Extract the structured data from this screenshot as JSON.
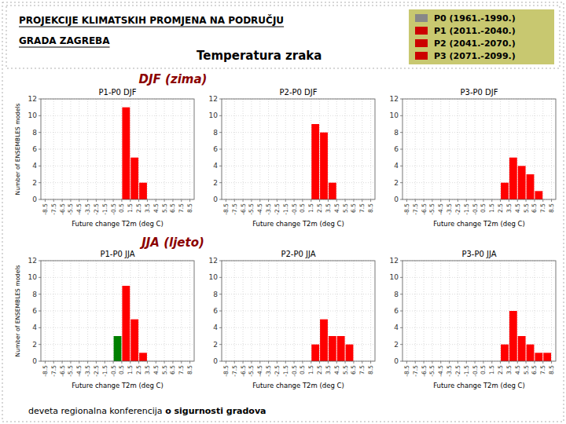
{
  "title": [
    "PROJEKCIJE KLIMATSKIH PROMJENA NA PODRUČJU",
    "GRADA ZAGREBA"
  ],
  "subtitle": "Temperatura zraka",
  "section_labels": [
    "DJF (zima)",
    "JJA (ljeto)"
  ],
  "section_label_color": "#8b0000",
  "legend_entries": [
    {
      "name": "P0 (1961.-1990.)",
      "color": "#888888"
    },
    {
      "name": "P1 (2011.-2040.)",
      "color": "#cc0000"
    },
    {
      "name": "P2 (2041.-2070.)",
      "color": "#cc0000"
    },
    {
      "name": "P3 (2071.-2099.)",
      "color": "#cc0000"
    }
  ],
  "legend_background": "#c8c870",
  "footer": [
    "d",
    "eveta regionalna konferencija ",
    "o sigurnosti gradova"
  ],
  "background_color": "#ffffff",
  "chart_data": [
    {
      "type": "histogram",
      "title": "P1-P0 DJF",
      "xlabel": "Future change T2m (deg C)",
      "ylabel": "Number of ENSEMBLES models",
      "bins": [
        -8.5,
        -7.5,
        -6.5,
        -5.5,
        -4.5,
        -3.5,
        -2.5,
        -1.5,
        -0.5,
        0.5,
        1.5,
        2.5,
        3.5,
        4.5,
        5.5,
        6.5,
        7.5,
        8.5
      ],
      "values": [
        0,
        0,
        0,
        0,
        0,
        0,
        0,
        0,
        0,
        11,
        5,
        2,
        0,
        0,
        0,
        0,
        0
      ],
      "colors": [
        "red",
        "red",
        "red",
        "red",
        "red",
        "red",
        "red",
        "red",
        "red",
        "red",
        "red",
        "red",
        "red",
        "red",
        "red",
        "red",
        "red"
      ],
      "xlim": [
        -9,
        9
      ],
      "xticks": [
        -8.5,
        -7.5,
        -6.5,
        -5.5,
        -4.5,
        -3.5,
        -2.5,
        -1.5,
        -0.5,
        0.5,
        1.5,
        2.5,
        3.5,
        4.5,
        5.5,
        6.5,
        7.5,
        8.5
      ],
      "ylim": [
        0,
        12
      ],
      "yticks": [
        0,
        2,
        4,
        6,
        8,
        10,
        12
      ],
      "grid": true
    },
    {
      "type": "histogram",
      "title": "P2-P0 DJF",
      "xlabel": "Future change T2m (deg C)",
      "bins": [
        -8.5,
        -7.5,
        -6.5,
        -5.5,
        -4.5,
        -3.5,
        -2.5,
        -1.5,
        -0.5,
        0.5,
        1.5,
        2.5,
        3.5,
        4.5,
        5.5,
        6.5,
        7.5,
        8.5
      ],
      "values": [
        0,
        0,
        0,
        0,
        0,
        0,
        0,
        0,
        0,
        0,
        9,
        8,
        2,
        0,
        0,
        0,
        0
      ],
      "colors": [
        "red",
        "red",
        "red",
        "red",
        "red",
        "red",
        "red",
        "red",
        "red",
        "red",
        "red",
        "red",
        "red",
        "red",
        "red",
        "red",
        "red"
      ],
      "xlim": [
        -9,
        9
      ],
      "xticks": [
        -8.5,
        -7.5,
        -6.5,
        -5.5,
        -4.5,
        -3.5,
        -2.5,
        -1.5,
        -0.5,
        0.5,
        1.5,
        2.5,
        3.5,
        4.5,
        5.5,
        6.5,
        7.5,
        8.5
      ],
      "ylim": [
        0,
        12
      ],
      "yticks": [
        0,
        2,
        4,
        6,
        8,
        10,
        12
      ],
      "grid": true
    },
    {
      "type": "histogram",
      "title": "P3-P0 DJF",
      "xlabel": "Future change T2m (deg C)",
      "bins": [
        -8.5,
        -7.5,
        -6.5,
        -5.5,
        -4.5,
        -3.5,
        -2.5,
        -1.5,
        -0.5,
        0.5,
        1.5,
        2.5,
        3.5,
        4.5,
        5.5,
        6.5,
        7.5,
        8.5
      ],
      "values": [
        0,
        0,
        0,
        0,
        0,
        0,
        0,
        0,
        0,
        0,
        0,
        2,
        5,
        4,
        3,
        1,
        0
      ],
      "colors": [
        "red",
        "red",
        "red",
        "red",
        "red",
        "red",
        "red",
        "red",
        "red",
        "red",
        "red",
        "red",
        "red",
        "red",
        "red",
        "red",
        "red"
      ],
      "xlim": [
        -9,
        9
      ],
      "xticks": [
        -8.5,
        -7.5,
        -6.5,
        -5.5,
        -4.5,
        -3.5,
        -2.5,
        -1.5,
        -0.5,
        0.5,
        1.5,
        2.5,
        3.5,
        4.5,
        5.5,
        6.5,
        7.5,
        8.5
      ],
      "ylim": [
        0,
        12
      ],
      "yticks": [
        0,
        2,
        4,
        6,
        8,
        10,
        12
      ],
      "grid": true
    },
    {
      "type": "histogram",
      "title": "P1-P0 JJA",
      "xlabel": "Future change T2m (deg C)",
      "ylabel": "Number of ENSEMBLES models",
      "bins": [
        -8.5,
        -7.5,
        -6.5,
        -5.5,
        -4.5,
        -3.5,
        -2.5,
        -1.5,
        -0.5,
        0.5,
        1.5,
        2.5,
        3.5,
        4.5,
        5.5,
        6.5,
        7.5,
        8.5
      ],
      "values": [
        0,
        0,
        0,
        0,
        0,
        0,
        0,
        0,
        3,
        9,
        5,
        1,
        0,
        0,
        0,
        0,
        0
      ],
      "colors": [
        "red",
        "red",
        "red",
        "red",
        "red",
        "red",
        "red",
        "red",
        "green",
        "red",
        "red",
        "red",
        "red",
        "red",
        "red",
        "red",
        "red"
      ],
      "xlim": [
        -9,
        9
      ],
      "xticks": [
        -8.5,
        -7.5,
        -6.5,
        -5.5,
        -4.5,
        -3.5,
        -2.5,
        -1.5,
        -0.5,
        0.5,
        1.5,
        2.5,
        3.5,
        4.5,
        5.5,
        6.5,
        7.5,
        8.5
      ],
      "ylim": [
        0,
        12
      ],
      "yticks": [
        0,
        2,
        4,
        6,
        8,
        10,
        12
      ],
      "grid": true
    },
    {
      "type": "histogram",
      "title": "P2-P0 JJA",
      "xlabel": "Future change T2m (deg C)",
      "bins": [
        -8.5,
        -7.5,
        -6.5,
        -5.5,
        -4.5,
        -3.5,
        -2.5,
        -1.5,
        -0.5,
        0.5,
        1.5,
        2.5,
        3.5,
        4.5,
        5.5,
        6.5,
        7.5,
        8.5
      ],
      "values": [
        0,
        0,
        0,
        0,
        0,
        0,
        0,
        0,
        0,
        0,
        2,
        5,
        3,
        3,
        2,
        0,
        0
      ],
      "colors": [
        "red",
        "red",
        "red",
        "red",
        "red",
        "red",
        "red",
        "red",
        "red",
        "red",
        "red",
        "red",
        "red",
        "red",
        "red",
        "red",
        "red"
      ],
      "xlim": [
        -9,
        9
      ],
      "xticks": [
        -8.5,
        -7.5,
        -6.5,
        -5.5,
        -4.5,
        -3.5,
        -2.5,
        -1.5,
        -0.5,
        0.5,
        1.5,
        2.5,
        3.5,
        4.5,
        5.5,
        6.5,
        7.5,
        8.5
      ],
      "ylim": [
        0,
        12
      ],
      "yticks": [
        0,
        2,
        4,
        6,
        8,
        10,
        12
      ],
      "grid": true
    },
    {
      "type": "histogram",
      "title": "P3-P0 JJA",
      "xlabel": "Future change T2m (deg C)",
      "bins": [
        -8.5,
        -7.5,
        -6.5,
        -5.5,
        -4.5,
        -3.5,
        -2.5,
        -1.5,
        -0.5,
        0.5,
        1.5,
        2.5,
        3.5,
        4.5,
        5.5,
        6.5,
        7.5,
        8.5
      ],
      "values": [
        0,
        0,
        0,
        0,
        0,
        0,
        0,
        0,
        0,
        0,
        0,
        2,
        6,
        3,
        2,
        1,
        1
      ],
      "colors": [
        "red",
        "red",
        "red",
        "red",
        "red",
        "red",
        "red",
        "red",
        "red",
        "red",
        "red",
        "red",
        "red",
        "red",
        "red",
        "red",
        "red"
      ],
      "xlim": [
        -9,
        9
      ],
      "xticks": [
        -8.5,
        -7.5,
        -6.5,
        -5.5,
        -4.5,
        -3.5,
        -2.5,
        -1.5,
        -0.5,
        0.5,
        1.5,
        2.5,
        3.5,
        4.5,
        5.5,
        6.5,
        7.5,
        8.5
      ],
      "ylim": [
        0,
        12
      ],
      "yticks": [
        0,
        2,
        4,
        6,
        8,
        10,
        12
      ],
      "grid": true
    }
  ]
}
